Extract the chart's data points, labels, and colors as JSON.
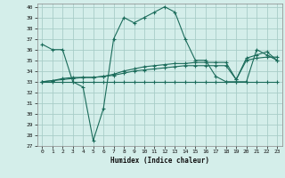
{
  "xlabel": "Humidex (Indice chaleur)",
  "xlim": [
    -0.5,
    23.5
  ],
  "ylim": [
    27,
    40.3
  ],
  "yticks": [
    27,
    28,
    29,
    30,
    31,
    32,
    33,
    34,
    35,
    36,
    37,
    38,
    39,
    40
  ],
  "xticks": [
    0,
    1,
    2,
    3,
    4,
    5,
    6,
    7,
    8,
    9,
    10,
    11,
    12,
    13,
    14,
    15,
    16,
    17,
    18,
    19,
    20,
    21,
    22,
    23
  ],
  "background_color": "#d4eeea",
  "grid_color": "#a8cdc8",
  "line_color": "#1a6b5a",
  "series": [
    {
      "x": [
        0,
        1,
        2,
        3,
        4,
        5,
        6,
        7,
        8,
        9,
        10,
        11,
        12,
        13,
        14,
        15,
        16,
        17,
        18,
        19,
        20,
        21,
        22,
        23
      ],
      "y": [
        36.5,
        36.0,
        36.0,
        33.0,
        32.5,
        27.5,
        30.5,
        37.0,
        39.0,
        38.5,
        39.0,
        39.5,
        40.0,
        39.5,
        37.0,
        35.0,
        35.0,
        33.5,
        33.0,
        33.0,
        33.0,
        36.0,
        35.5,
        35.0
      ]
    },
    {
      "x": [
        0,
        1,
        2,
        3,
        4,
        5,
        6,
        7,
        8,
        9,
        10,
        11,
        12,
        13,
        14,
        15,
        16,
        17,
        18,
        19,
        20,
        21,
        22,
        23
      ],
      "y": [
        33.0,
        33.0,
        33.0,
        33.0,
        33.0,
        33.0,
        33.0,
        33.0,
        33.0,
        33.0,
        33.0,
        33.0,
        33.0,
        33.0,
        33.0,
        33.0,
        33.0,
        33.0,
        33.0,
        33.0,
        33.0,
        33.0,
        33.0,
        33.0
      ]
    },
    {
      "x": [
        0,
        1,
        2,
        3,
        4,
        5,
        6,
        7,
        8,
        9,
        10,
        11,
        12,
        13,
        14,
        15,
        16,
        17,
        18,
        19,
        20,
        21,
        22,
        23
      ],
      "y": [
        33.0,
        33.1,
        33.2,
        33.3,
        33.4,
        33.4,
        33.5,
        33.6,
        33.8,
        34.0,
        34.1,
        34.2,
        34.3,
        34.4,
        34.5,
        34.5,
        34.5,
        34.5,
        34.5,
        33.2,
        35.0,
        35.2,
        35.3,
        35.3
      ]
    },
    {
      "x": [
        0,
        1,
        2,
        3,
        4,
        5,
        6,
        7,
        8,
        9,
        10,
        11,
        12,
        13,
        14,
        15,
        16,
        17,
        18,
        19,
        20,
        21,
        22,
        23
      ],
      "y": [
        33.0,
        33.1,
        33.3,
        33.4,
        33.4,
        33.4,
        33.5,
        33.7,
        34.0,
        34.2,
        34.4,
        34.5,
        34.6,
        34.7,
        34.7,
        34.8,
        34.8,
        34.8,
        34.8,
        33.2,
        35.2,
        35.5,
        35.8,
        35.0
      ]
    }
  ]
}
